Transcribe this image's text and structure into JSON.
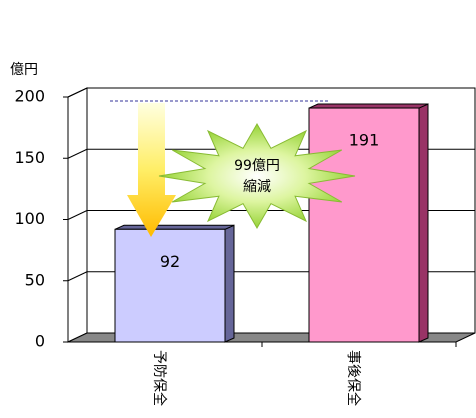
{
  "chart_data": {
    "type": "bar3d",
    "y_label": "億円",
    "categories": [
      "予防保全",
      "事後保全"
    ],
    "values": [
      92,
      191
    ],
    "colors": [
      "#ccccff",
      "#ff99cc"
    ],
    "side_colors": [
      "#666699",
      "#993366"
    ],
    "ylim": [
      0,
      200
    ],
    "yticks": [
      0,
      50,
      100,
      150,
      200
    ],
    "grid": true,
    "annotation": [
      "99億円",
      "縮減"
    ]
  }
}
